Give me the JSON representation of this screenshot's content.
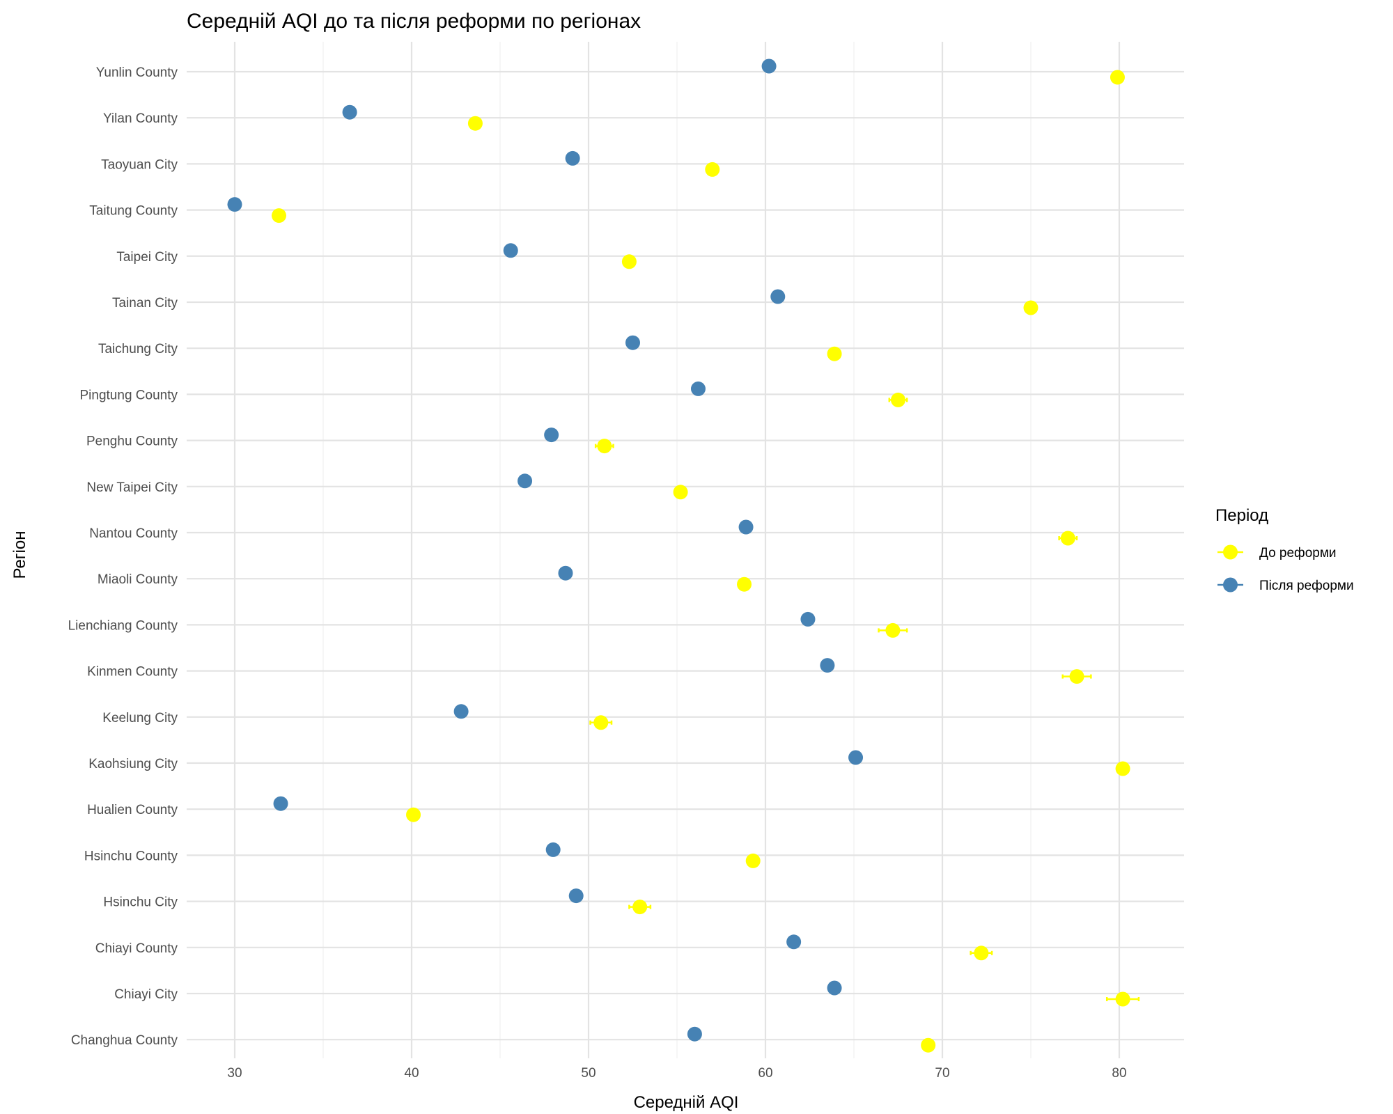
{
  "chart_data": {
    "type": "scatter",
    "title": "Середній AQI до та після реформи по регіонах",
    "xlabel": "Середній AQI",
    "ylabel": "Регіон",
    "xlim": [
      27.5,
      83.5
    ],
    "xticks": [
      30,
      40,
      50,
      60,
      70,
      80
    ],
    "grid": true,
    "legend": {
      "title": "Період",
      "placement": "right"
    },
    "categories": [
      "Changhua County",
      "Chiayi City",
      "Chiayi County",
      "Hsinchu City",
      "Hsinchu County",
      "Hualien County",
      "Kaohsiung City",
      "Keelung City",
      "Kinmen County",
      "Lienchiang County",
      "Miaoli County",
      "Nantou County",
      "New Taipei City",
      "Penghu County",
      "Pingtung County",
      "Taichung City",
      "Tainan City",
      "Taipei City",
      "Taitung County",
      "Taoyuan City",
      "Yilan County",
      "Yunlin County"
    ],
    "series": [
      {
        "name": "До реформи",
        "color": "#FFFF00",
        "values": [
          69.2,
          80.2,
          72.2,
          52.9,
          59.3,
          40.1,
          80.2,
          50.7,
          77.6,
          67.2,
          58.8,
          77.1,
          55.2,
          50.9,
          67.5,
          63.9,
          75.0,
          52.3,
          32.5,
          57.0,
          43.6,
          79.9
        ],
        "errors": [
          0.3,
          0.9,
          0.6,
          0.6,
          0.3,
          0.3,
          0.3,
          0.6,
          0.8,
          0.8,
          0.3,
          0.5,
          0.3,
          0.5,
          0.5,
          0.3,
          0.3,
          0.3,
          0.3,
          0.3,
          0.3,
          0.3
        ]
      },
      {
        "name": "Після реформи",
        "color": "#4682B4",
        "values": [
          56.0,
          63.9,
          61.6,
          49.3,
          48.0,
          32.6,
          65.1,
          42.8,
          63.5,
          62.4,
          48.7,
          58.9,
          46.4,
          47.9,
          56.2,
          52.5,
          60.7,
          45.6,
          30.0,
          49.1,
          36.5,
          60.2
        ],
        "errors": [
          0.2,
          0.2,
          0.2,
          0.2,
          0.2,
          0.2,
          0.2,
          0.2,
          0.2,
          0.2,
          0.2,
          0.2,
          0.2,
          0.2,
          0.2,
          0.2,
          0.2,
          0.2,
          0.2,
          0.2,
          0.2,
          0.2
        ]
      }
    ]
  }
}
